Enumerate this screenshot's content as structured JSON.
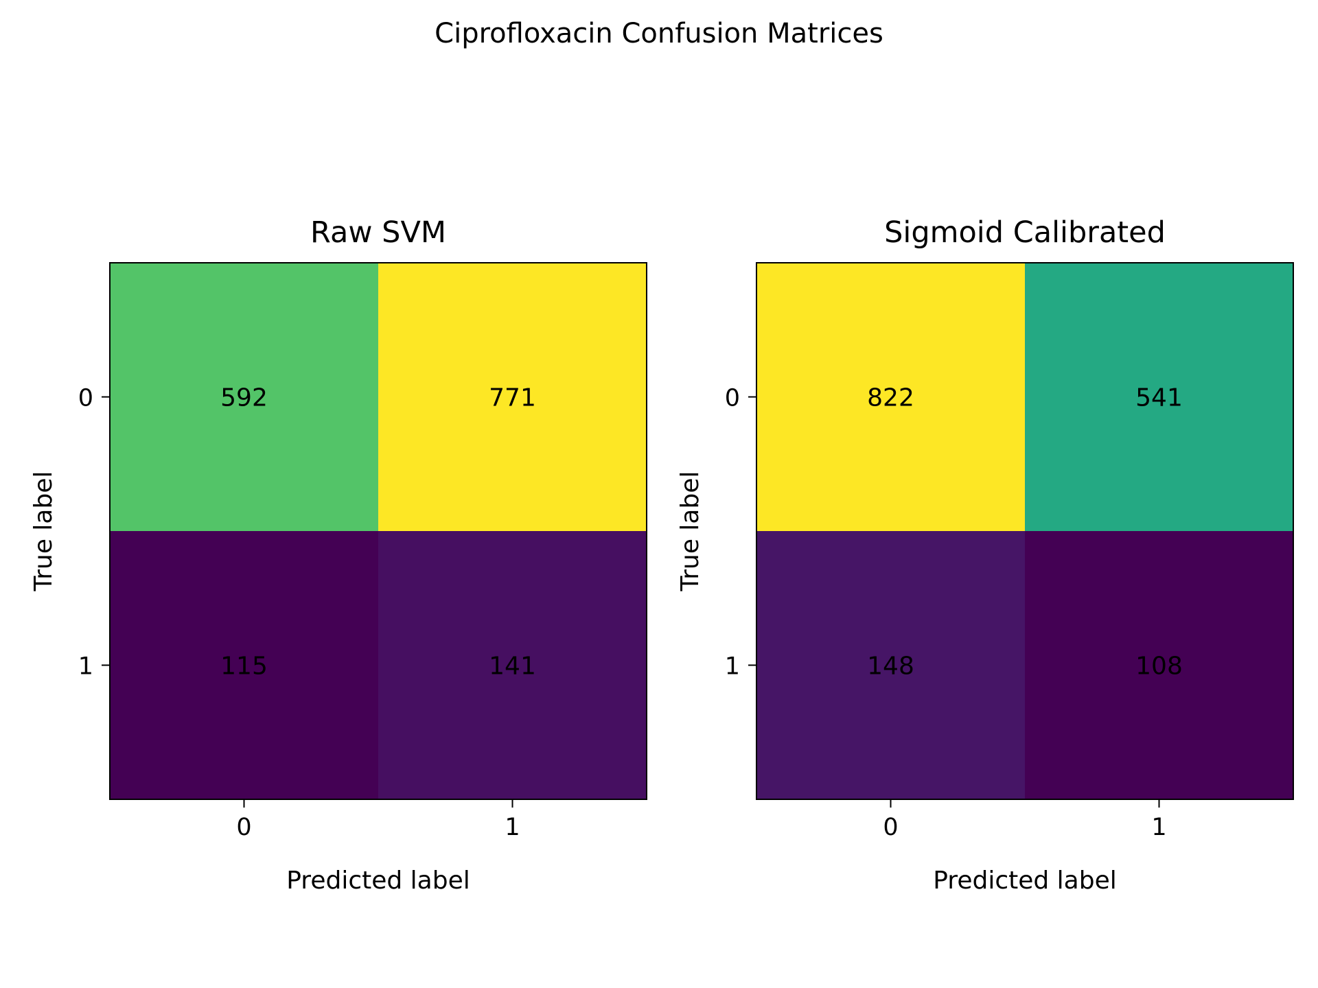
{
  "title": "Ciprofloxacin Confusion Matrices",
  "chart_data": [
    {
      "type": "heatmap",
      "title": "Raw SVM",
      "xlabel": "Predicted label",
      "ylabel": "True label",
      "x_ticks": [
        "0",
        "1"
      ],
      "y_ticks": [
        "0",
        "1"
      ],
      "values": [
        [
          592,
          771
        ],
        [
          115,
          141
        ]
      ],
      "colormap": "viridis",
      "grid": false
    },
    {
      "type": "heatmap",
      "title": "Sigmoid Calibrated",
      "xlabel": "Predicted label",
      "ylabel": "True label",
      "x_ticks": [
        "0",
        "1"
      ],
      "y_ticks": [
        "0",
        "1"
      ],
      "values": [
        [
          822,
          541
        ],
        [
          148,
          108
        ]
      ],
      "colormap": "viridis",
      "grid": false
    }
  ]
}
